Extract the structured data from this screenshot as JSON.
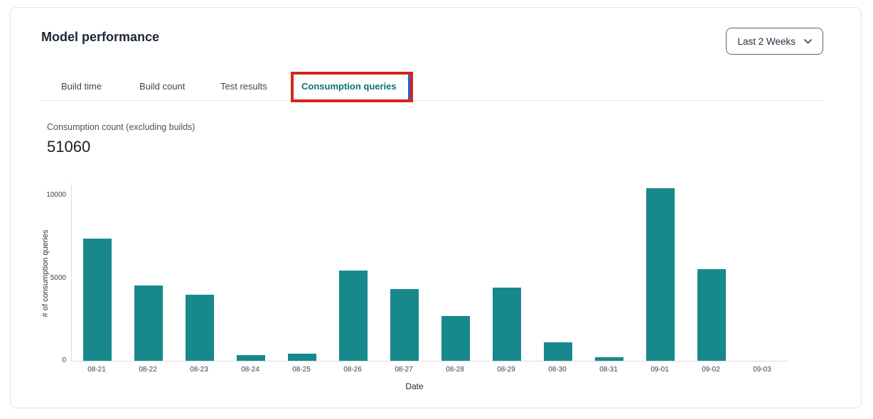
{
  "header": {
    "title": "Model performance",
    "date_range": {
      "value": "Last 2 Weeks"
    }
  },
  "tabs": {
    "items": [
      {
        "label": "Build time",
        "active": false
      },
      {
        "label": "Build count",
        "active": false
      },
      {
        "label": "Test results",
        "active": false
      },
      {
        "label": "Consumption queries",
        "active": true
      }
    ]
  },
  "annotation": {
    "type": "highlight-box",
    "target": "Consumption queries tab",
    "red": "#D3261A",
    "blue": "#2A5FC9"
  },
  "metric": {
    "label": "Consumption count (excluding builds)",
    "value": "51060"
  },
  "chart_data": {
    "type": "bar",
    "title": "",
    "categories": [
      "08-21",
      "08-22",
      "08-23",
      "08-24",
      "08-25",
      "08-26",
      "08-27",
      "08-28",
      "08-29",
      "08-30",
      "08-31",
      "09-01",
      "09-02",
      "09-03"
    ],
    "values": [
      7385,
      4560,
      4015,
      327,
      446,
      5452,
      4362,
      2726,
      4431,
      1140,
      227,
      10438,
      5551,
      0
    ],
    "xlabel": "Date",
    "ylabel": "# of consumption queries",
    "ylim": [
      0,
      10750
    ],
    "yticks": [
      0,
      5000,
      10000
    ],
    "grid": false,
    "legend": null,
    "bar_color": "#17898D"
  },
  "colors": {
    "accent_teal": "#0C7075",
    "bar_teal": "#17898D",
    "annotation_red": "#D3261A",
    "annotation_blue": "#2A5FC9",
    "card_border": "#E1E4E8"
  }
}
